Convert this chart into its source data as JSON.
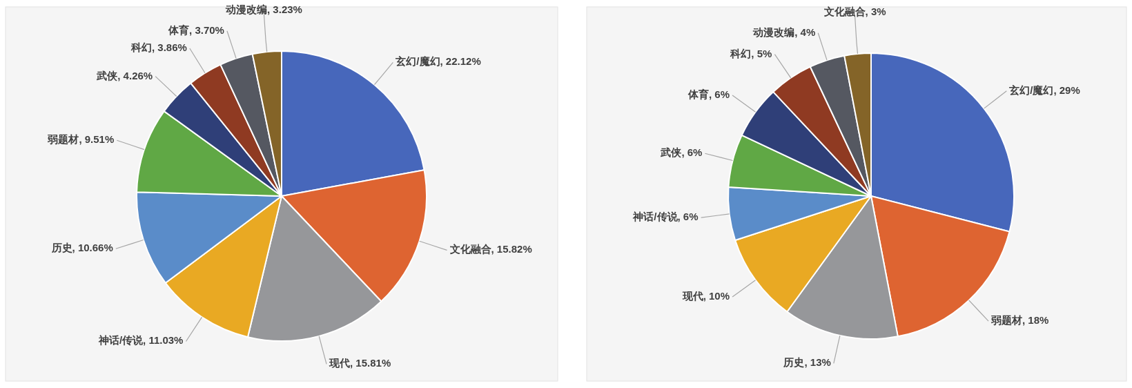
{
  "chart_data": [
    {
      "type": "pie",
      "categories": [
        "玄幻/魔幻",
        "文化融合",
        "现代",
        "神话/传说",
        "历史",
        "弱题材",
        "武侠",
        "科幻",
        "体育",
        "动漫改编"
      ],
      "values": [
        22.12,
        15.82,
        15.81,
        11.03,
        10.66,
        9.51,
        4.26,
        3.86,
        3.7,
        3.23
      ],
      "value_labels": [
        "22.12%",
        "15.82%",
        "15.81%",
        "11.03%",
        "10.66%",
        "9.51%",
        "4.26%",
        "3.86%",
        "3.70%",
        "3.23%"
      ],
      "colors": [
        "#4767bb",
        "#de6431",
        "#96979a",
        "#e9a923",
        "#5a8cc9",
        "#60a845",
        "#2f3f78",
        "#8f3a22",
        "#555861",
        "#846428"
      ]
    },
    {
      "type": "pie",
      "categories": [
        "玄幻/魔幻",
        "弱题材",
        "历史",
        "现代",
        "神话/传说",
        "武侠",
        "体育",
        "科幻",
        "动漫改编",
        "文化融合"
      ],
      "values": [
        29,
        18,
        13,
        10,
        6,
        6,
        6,
        5,
        4,
        3
      ],
      "value_labels": [
        "29%",
        "18%",
        "13%",
        "10%",
        "6%",
        "6%",
        "6%",
        "5%",
        "4%",
        "3%"
      ],
      "colors": [
        "#4767bb",
        "#de6431",
        "#96979a",
        "#e9a923",
        "#5a8cc9",
        "#60a845",
        "#2f3f78",
        "#8f3a22",
        "#555861",
        "#846428"
      ]
    }
  ]
}
